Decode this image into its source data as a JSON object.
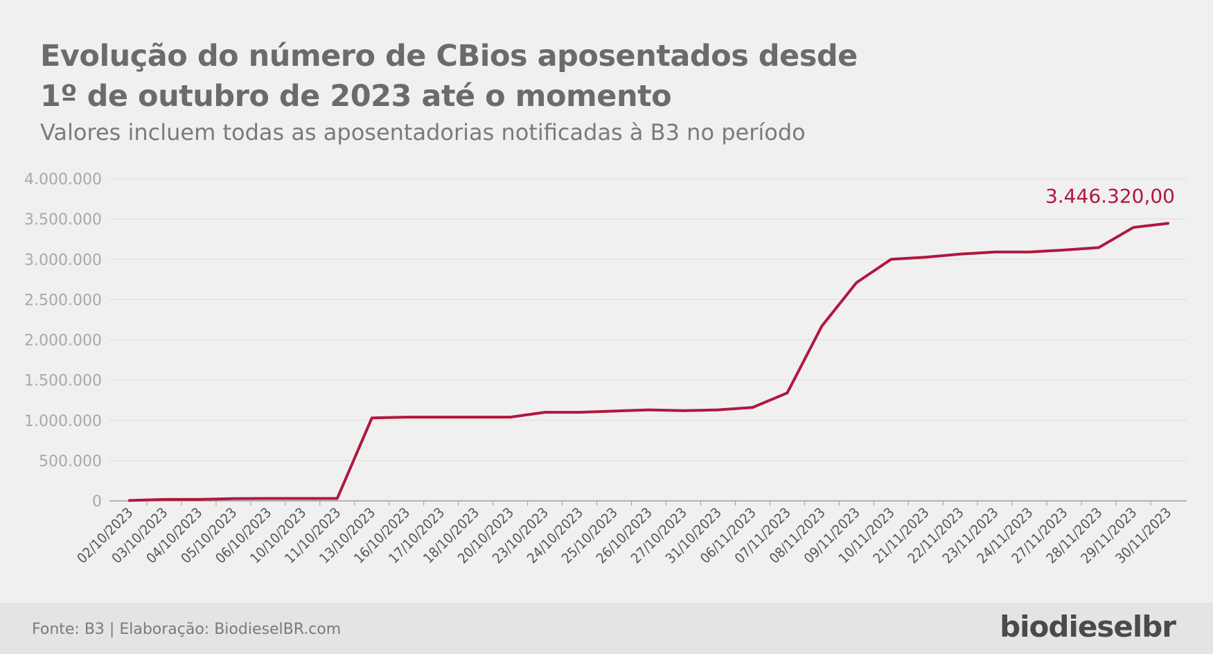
{
  "header": {
    "title_line1": "Evolução do número de CBios aposentados desde",
    "title_line2": "1º de outubro de 2023 até o momento",
    "subtitle": "Valores incluem todas as aposentadorias notificadas à B3 no período"
  },
  "footer": {
    "source": "Fonte: B3 | Elaboração: BiodieselBR.com",
    "logo": "biodieselbr"
  },
  "colors": {
    "line": "#b0173e",
    "grid": "#dcdcdc",
    "axis_text": "#a8a8a8",
    "date_text": "#555555"
  },
  "chart_data": {
    "type": "line",
    "title": "Evolução do número de CBios aposentados desde 1º de outubro de 2023 até o momento",
    "subtitle": "Valores incluem todas as aposentadorias notificadas à B3 no período",
    "xlabel": "",
    "ylabel": "",
    "ylim": [
      0,
      4000000
    ],
    "yticks": [
      0,
      500000,
      1000000,
      1500000,
      2000000,
      2500000,
      3000000,
      3500000,
      4000000
    ],
    "ytick_labels": [
      "0",
      "500.000",
      "1.000.000",
      "1.500.000",
      "2.000.000",
      "2.500.000",
      "3.000.000",
      "3.500.000",
      "4.000.000"
    ],
    "grid": true,
    "legend": "none",
    "categories": [
      "02/10/2023",
      "03/10/2023",
      "04/10/2023",
      "05/10/2023",
      "06/10/2023",
      "10/10/2023",
      "11/10/2023",
      "13/10/2023",
      "16/10/2023",
      "17/10/2023",
      "18/10/2023",
      "20/10/2023",
      "23/10/2023",
      "24/10/2023",
      "25/10/2023",
      "26/10/2023",
      "27/10/2023",
      "31/10/2023",
      "06/11/2023",
      "07/11/2023",
      "08/11/2023",
      "09/11/2023",
      "10/11/2023",
      "21/11/2023",
      "22/11/2023",
      "23/11/2023",
      "24/11/2023",
      "27/11/2023",
      "28/11/2023",
      "29/11/2023",
      "30/11/2023"
    ],
    "series": [
      {
        "values": [
          5000,
          18000,
          18000,
          28000,
          30000,
          30000,
          30000,
          1030000,
          1040000,
          1040000,
          1040000,
          1040000,
          1100000,
          1100000,
          1115000,
          1130000,
          1120000,
          1130000,
          1160000,
          1340000,
          2170000,
          2710000,
          3000000,
          3025000,
          3065000,
          3090000,
          3090000,
          3115000,
          3145000,
          3395000,
          3446320
        ]
      }
    ],
    "annotations": [
      {
        "category": "30/11/2023",
        "text": "3.446.320,00"
      }
    ]
  }
}
